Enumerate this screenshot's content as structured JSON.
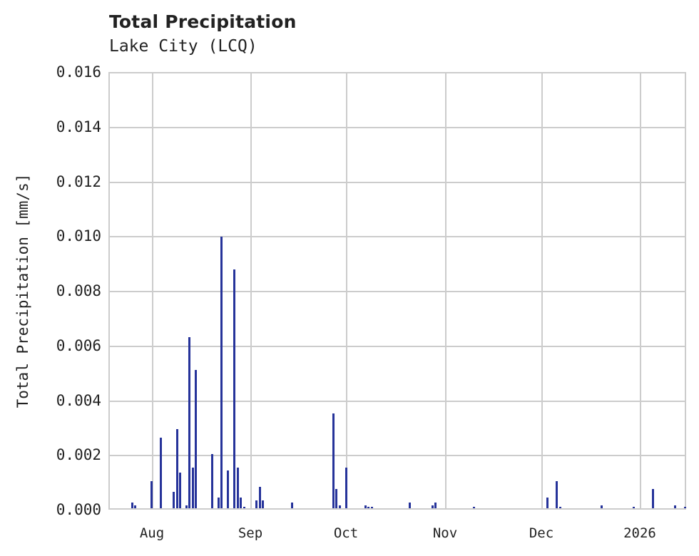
{
  "chart_data": {
    "type": "bar",
    "title": "Total Precipitation",
    "subtitle": "Lake City (LCQ)",
    "xlabel": "",
    "ylabel": "Total Precipitation [mm/s]",
    "ylim": [
      0,
      0.016
    ],
    "yticks": [
      "0.000",
      "0.002",
      "0.004",
      "0.006",
      "0.008",
      "0.010",
      "0.012",
      "0.014",
      "0.016"
    ],
    "xticks": [
      "Aug",
      "Sep",
      "Oct",
      "Nov",
      "Dec",
      "2026"
    ],
    "grid": true,
    "legend": null,
    "color": "#26339a",
    "x_range": [
      "2025-07-18",
      "2026-01-14"
    ],
    "series": [
      {
        "name": "Total Precipitation",
        "points": [
          {
            "x": "2025-07-25",
            "y": 0.0002
          },
          {
            "x": "2025-07-26",
            "y": 0.0001
          },
          {
            "x": "2025-07-31",
            "y": 0.001
          },
          {
            "x": "2025-08-03",
            "y": 0.0026
          },
          {
            "x": "2025-08-07",
            "y": 0.0006
          },
          {
            "x": "2025-08-08",
            "y": 0.0029
          },
          {
            "x": "2025-08-09",
            "y": 0.0013
          },
          {
            "x": "2025-08-11",
            "y": 0.0001
          },
          {
            "x": "2025-08-12",
            "y": 0.0063
          },
          {
            "x": "2025-08-13",
            "y": 0.0015
          },
          {
            "x": "2025-08-14",
            "y": 0.0051
          },
          {
            "x": "2025-08-19",
            "y": 0.002
          },
          {
            "x": "2025-08-21",
            "y": 0.0004
          },
          {
            "x": "2025-08-22",
            "y": 0.01
          },
          {
            "x": "2025-08-24",
            "y": 0.0014
          },
          {
            "x": "2025-08-26",
            "y": 0.0088
          },
          {
            "x": "2025-08-27",
            "y": 0.0015
          },
          {
            "x": "2025-08-28",
            "y": 0.0004
          },
          {
            "x": "2025-08-29",
            "y": 5e-05
          },
          {
            "x": "2025-09-02",
            "y": 0.0003
          },
          {
            "x": "2025-09-03",
            "y": 0.0008
          },
          {
            "x": "2025-09-04",
            "y": 0.0003
          },
          {
            "x": "2025-09-13",
            "y": 0.0002
          },
          {
            "x": "2025-09-26",
            "y": 0.0035
          },
          {
            "x": "2025-09-27",
            "y": 0.0007
          },
          {
            "x": "2025-09-28",
            "y": 0.0001
          },
          {
            "x": "2025-09-30",
            "y": 0.0015
          },
          {
            "x": "2025-10-06",
            "y": 0.0001
          },
          {
            "x": "2025-10-07",
            "y": 5e-05
          },
          {
            "x": "2025-10-08",
            "y": 5e-05
          },
          {
            "x": "2025-10-20",
            "y": 0.0002
          },
          {
            "x": "2025-10-27",
            "y": 0.0001
          },
          {
            "x": "2025-10-28",
            "y": 0.0002
          },
          {
            "x": "2025-11-09",
            "y": 5e-05
          },
          {
            "x": "2025-12-02",
            "y": 0.0004
          },
          {
            "x": "2025-12-05",
            "y": 0.001
          },
          {
            "x": "2025-12-06",
            "y": 5e-05
          },
          {
            "x": "2025-12-19",
            "y": 0.0001
          },
          {
            "x": "2025-12-29",
            "y": 5e-05
          },
          {
            "x": "2026-01-04",
            "y": 0.0007
          },
          {
            "x": "2026-01-11",
            "y": 0.0001
          },
          {
            "x": "2026-01-14",
            "y": 5e-05
          }
        ]
      }
    ]
  }
}
